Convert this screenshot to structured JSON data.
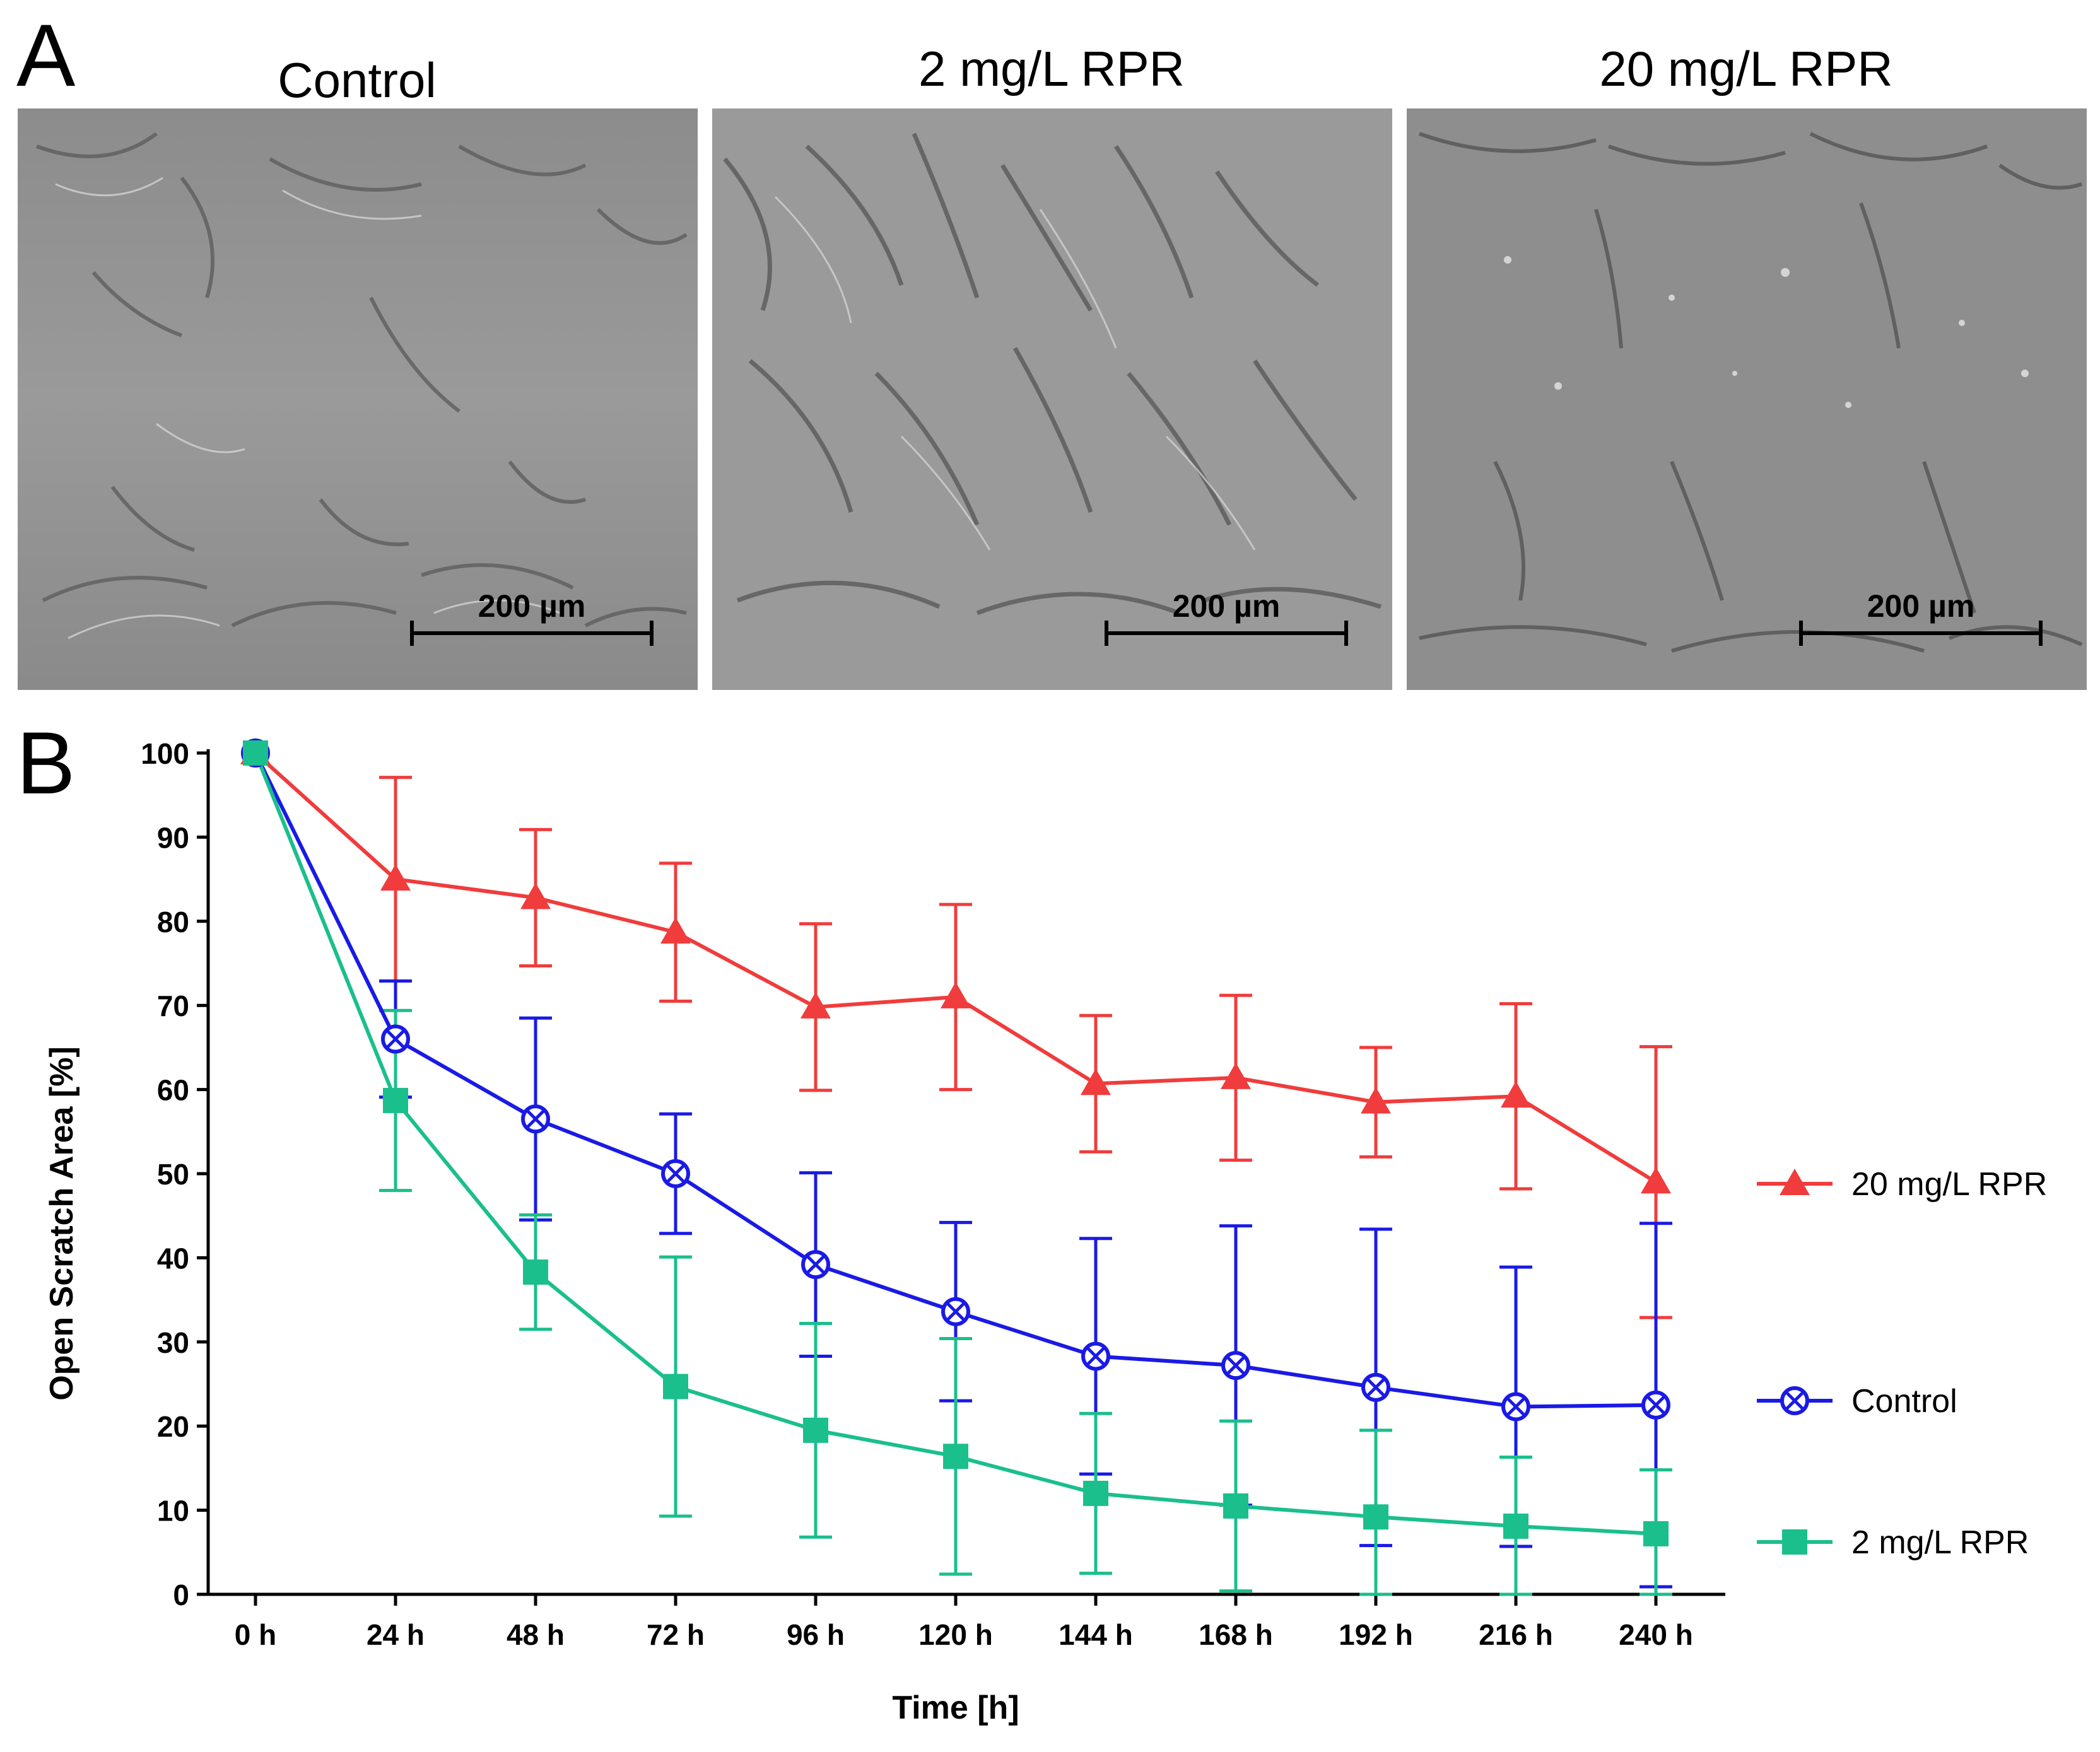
{
  "panel_a": {
    "letter": "A",
    "panels": [
      {
        "title": "Control",
        "scale_bar_label": "200 µm"
      },
      {
        "title": "2 mg/L RPR",
        "scale_bar_label": "200 µm"
      },
      {
        "title": "20 mg/L RPR",
        "scale_bar_label": "200 µm"
      }
    ]
  },
  "panel_b": {
    "letter": "B"
  },
  "chart_data": {
    "type": "line",
    "title": "",
    "xlabel": "Time [h]",
    "ylabel": "Open Scratch Area [%]",
    "ylim": [
      0,
      100
    ],
    "yticks": [
      0,
      10,
      20,
      30,
      40,
      50,
      60,
      70,
      80,
      90,
      100
    ],
    "categories": [
      "0 h",
      "24 h",
      "48 h",
      "72 h",
      "96 h",
      "120 h",
      "144 h",
      "168 h",
      "192 h",
      "216 h",
      "240 h"
    ],
    "legend_position": "right",
    "series": [
      {
        "name": "20 mg/L RPR",
        "color": "#f03c3c",
        "marker": "triangle",
        "values": [
          100,
          85.0,
          82.8,
          78.7,
          69.8,
          71.0,
          60.7,
          61.4,
          58.5,
          59.2,
          49.0
        ],
        "error": [
          0,
          12.1,
          8.1,
          8.2,
          9.9,
          11.0,
          8.1,
          9.8,
          6.5,
          11.0,
          16.1
        ]
      },
      {
        "name": "Control",
        "color": "#1a1ae6",
        "marker": "circle-x",
        "values": [
          100,
          66.0,
          56.5,
          50.0,
          39.2,
          33.6,
          28.3,
          27.2,
          24.6,
          22.3,
          22.5
        ],
        "error": [
          0,
          6.9,
          12.0,
          7.1,
          10.9,
          10.6,
          14.0,
          16.6,
          18.8,
          16.6,
          21.6
        ]
      },
      {
        "name": "2 mg/L RPR",
        "color": "#1abf8c",
        "marker": "square",
        "values": [
          100,
          58.7,
          38.3,
          24.7,
          19.5,
          16.4,
          12.0,
          10.5,
          9.2,
          8.1,
          7.2
        ],
        "error": [
          0,
          10.7,
          6.8,
          15.4,
          12.7,
          14.0,
          9.5,
          10.1,
          10.3,
          8.2,
          7.6
        ]
      }
    ]
  }
}
